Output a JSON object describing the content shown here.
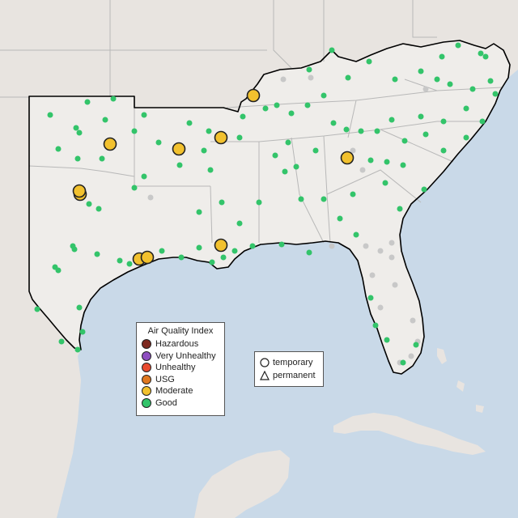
{
  "legend": {
    "title": "Air Quality Index",
    "categories": [
      {
        "label": "Hazardous",
        "color": "#7e2a20"
      },
      {
        "label": "Very Unhealthy",
        "color": "#8e4fc0"
      },
      {
        "label": "Unhealthy",
        "color": "#e84a2f"
      },
      {
        "label": "USG",
        "color": "#e07820"
      },
      {
        "label": "Moderate",
        "color": "#f2c12e"
      },
      {
        "label": "Good",
        "color": "#33c46a"
      }
    ]
  },
  "monitor_types": [
    {
      "label": "temporary",
      "shape": "circle"
    },
    {
      "label": "permanent",
      "shape": "triangle"
    }
  ],
  "colors": {
    "ocean": "#c9d9e8",
    "land": "#e8e4e0",
    "highlight_land": "#efedea",
    "state_border": "#b8b8b8",
    "region_outline": "#000000",
    "no_data": "#c8c8c8"
  }
}
